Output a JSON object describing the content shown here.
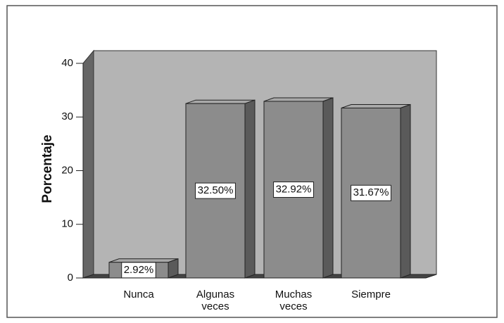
{
  "chart_data": {
    "type": "bar3d",
    "y_label": "Porcentaje",
    "categories": [
      "Nunca",
      "Algunas veces",
      "Muchas veces",
      "Siempre"
    ],
    "values": [
      2.92,
      32.5,
      32.92,
      31.67
    ],
    "value_labels": [
      "2.92%",
      "32.50%",
      "32.92%",
      "31.67%"
    ],
    "color": "#8c8c8c",
    "ylim": [
      0,
      40
    ],
    "yticks": [
      0,
      10,
      20,
      30,
      40
    ],
    "grid": false
  }
}
